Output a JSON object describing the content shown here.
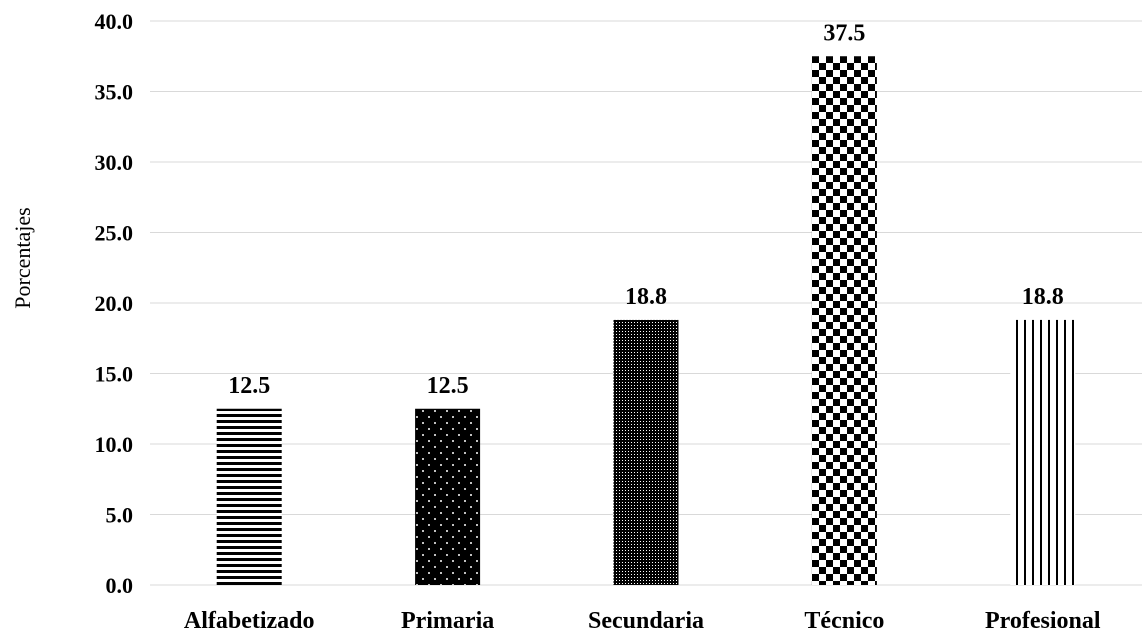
{
  "chart_data": {
    "type": "bar",
    "categories": [
      "Alfabetizado",
      "Primaria",
      "Secundaria",
      "Técnico",
      "Profesional"
    ],
    "values": [
      12.5,
      12.5,
      18.8,
      37.5,
      18.8
    ],
    "data_labels": [
      "12.5",
      "12.5",
      "18.8",
      "37.5",
      "18.8"
    ],
    "patterns": [
      "horizontal-stripes",
      "white-dots-on-black",
      "fine-dot-grid",
      "checkerboard",
      "vertical-stripes"
    ],
    "title": "",
    "xlabel": "",
    "ylabel": "Porcentajes",
    "ylim": [
      0,
      40
    ],
    "yticks": [
      "0.0",
      "5.0",
      "10.0",
      "15.0",
      "20.0",
      "25.0",
      "30.0",
      "35.0",
      "40.0"
    ],
    "grid": true,
    "legend": "none",
    "colors": {
      "bar": "#000000",
      "background": "#ffffff",
      "grid": "#d9d9d9"
    }
  }
}
